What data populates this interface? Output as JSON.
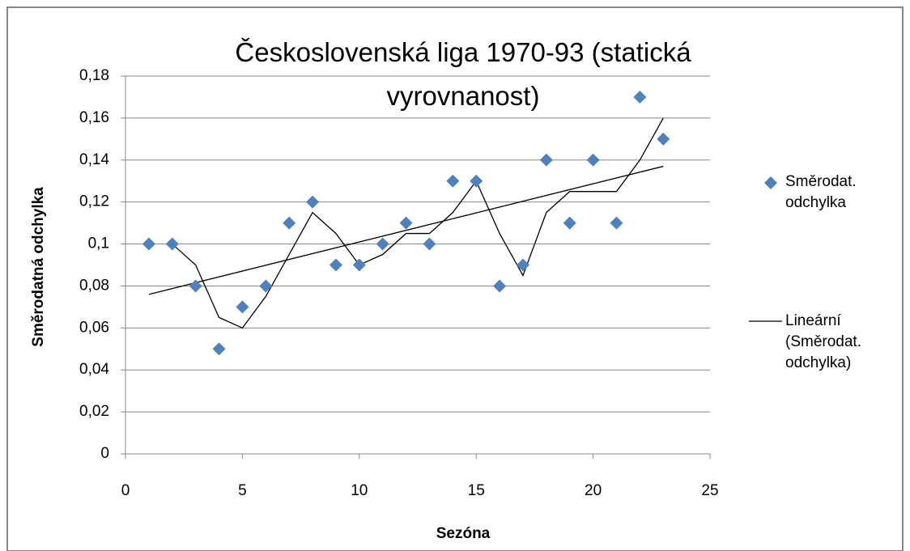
{
  "chart_data": {
    "type": "scatter",
    "title": "Československá liga 1970-93 (statická vyrovnanost)",
    "x_label": "Sezóna",
    "y_label": "Směrodatná odchylka",
    "x": [
      1,
      2,
      3,
      4,
      5,
      6,
      7,
      8,
      9,
      10,
      11,
      12,
      13,
      14,
      15,
      16,
      17,
      18,
      19,
      20,
      21,
      22,
      23
    ],
    "series": [
      {
        "name": "Směrodat. odchylka",
        "color": "#4f81bd",
        "values": [
          0.1,
          0.1,
          0.08,
          0.05,
          0.07,
          0.08,
          0.11,
          0.12,
          0.09,
          0.09,
          0.1,
          0.11,
          0.1,
          0.13,
          0.13,
          0.08,
          0.09,
          0.14,
          0.11,
          0.14,
          0.11,
          0.17,
          0.15
        ]
      }
    ],
    "moving_average": {
      "color": "#000000",
      "x": [
        2,
        3,
        4,
        5,
        6,
        7,
        8,
        9,
        10,
        11,
        12,
        13,
        14,
        15,
        16,
        17,
        18,
        19,
        20,
        21,
        22,
        23
      ],
      "values": [
        0.1,
        0.09,
        0.065,
        0.06,
        0.075,
        0.095,
        0.115,
        0.105,
        0.09,
        0.095,
        0.105,
        0.105,
        0.115,
        0.13,
        0.105,
        0.085,
        0.115,
        0.125,
        0.125,
        0.125,
        0.14,
        0.16
      ]
    },
    "trendline": {
      "name": "Lineární (Směrodat. odchylka)",
      "color": "#000000",
      "x": [
        1,
        23
      ],
      "values": [
        0.076,
        0.137
      ]
    },
    "xlim": [
      0,
      25
    ],
    "xticks": [
      0,
      5,
      10,
      15,
      20,
      25
    ],
    "ylim": [
      0,
      0.18
    ],
    "yticks": [
      0,
      {
        "value": 0.02,
        "label": "0,02"
      },
      {
        "value": 0.04,
        "label": "0,04"
      },
      {
        "value": 0.06,
        "label": "0,06"
      },
      {
        "value": 0.08,
        "label": "0,08"
      },
      {
        "value": 0.1,
        "label": "0,1"
      },
      {
        "value": 0.12,
        "label": "0,12"
      },
      {
        "value": 0.14,
        "label": "0,14"
      },
      {
        "value": 0.16,
        "label": "0,16"
      },
      {
        "value": 0.18,
        "label": "0,18"
      }
    ],
    "grid": true,
    "legend": "right"
  }
}
